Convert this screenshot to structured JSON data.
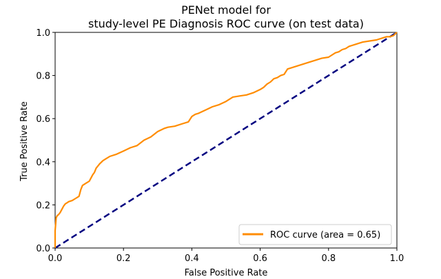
{
  "chart_data": {
    "type": "line",
    "title_line1": "PENet model for",
    "title_line2": "study-level PE Diagnosis ROC curve (on test data)",
    "xlabel": "False Positive Rate",
    "ylabel": "True Positive Rate",
    "xlim": [
      0.0,
      1.0
    ],
    "ylim": [
      0.0,
      1.0
    ],
    "xticks": [
      0.0,
      0.2,
      0.4,
      0.6,
      0.8,
      1.0
    ],
    "yticks": [
      0.0,
      0.2,
      0.4,
      0.6,
      0.8,
      1.0
    ],
    "xtick_labels": [
      "0.0",
      "0.2",
      "0.4",
      "0.6",
      "0.8",
      "1.0"
    ],
    "ytick_labels": [
      "0.0",
      "0.2",
      "0.4",
      "0.6",
      "0.8",
      "1.0"
    ],
    "grid": false,
    "legend_position": "lower-right",
    "series": [
      {
        "name": "ROC curve (area = 0.65)",
        "color": "#ff8c00",
        "style": "solid",
        "x": [
          0.0,
          0.0,
          0.003,
          0.006,
          0.01,
          0.015,
          0.02,
          0.025,
          0.03,
          0.035,
          0.04,
          0.05,
          0.06,
          0.07,
          0.075,
          0.08,
          0.09,
          0.1,
          0.11,
          0.115,
          0.12,
          0.13,
          0.14,
          0.15,
          0.16,
          0.18,
          0.2,
          0.22,
          0.24,
          0.26,
          0.28,
          0.3,
          0.32,
          0.33,
          0.35,
          0.37,
          0.39,
          0.4,
          0.41,
          0.42,
          0.44,
          0.46,
          0.48,
          0.5,
          0.52,
          0.54,
          0.56,
          0.58,
          0.6,
          0.61,
          0.62,
          0.63,
          0.64,
          0.65,
          0.66,
          0.67,
          0.68,
          0.7,
          0.72,
          0.74,
          0.76,
          0.78,
          0.8,
          0.82,
          0.83,
          0.84,
          0.85,
          0.86,
          0.88,
          0.9,
          0.92,
          0.94,
          0.96,
          0.97,
          0.98,
          0.99,
          1.0
        ],
        "y": [
          0.0,
          0.08,
          0.14,
          0.15,
          0.155,
          0.165,
          0.18,
          0.195,
          0.205,
          0.21,
          0.215,
          0.22,
          0.23,
          0.24,
          0.27,
          0.29,
          0.3,
          0.31,
          0.34,
          0.35,
          0.37,
          0.39,
          0.405,
          0.415,
          0.425,
          0.435,
          0.45,
          0.465,
          0.475,
          0.5,
          0.515,
          0.54,
          0.555,
          0.56,
          0.565,
          0.575,
          0.585,
          0.61,
          0.62,
          0.625,
          0.64,
          0.655,
          0.665,
          0.68,
          0.7,
          0.705,
          0.71,
          0.72,
          0.735,
          0.745,
          0.76,
          0.77,
          0.785,
          0.79,
          0.8,
          0.805,
          0.83,
          0.84,
          0.85,
          0.86,
          0.87,
          0.88,
          0.885,
          0.905,
          0.91,
          0.92,
          0.925,
          0.935,
          0.945,
          0.955,
          0.96,
          0.965,
          0.975,
          0.98,
          0.98,
          0.985,
          1.0
        ]
      },
      {
        "name": "",
        "color": "#000080",
        "style": "dashed",
        "x": [
          0.0,
          1.0
        ],
        "y": [
          0.0,
          1.0
        ]
      }
    ]
  }
}
